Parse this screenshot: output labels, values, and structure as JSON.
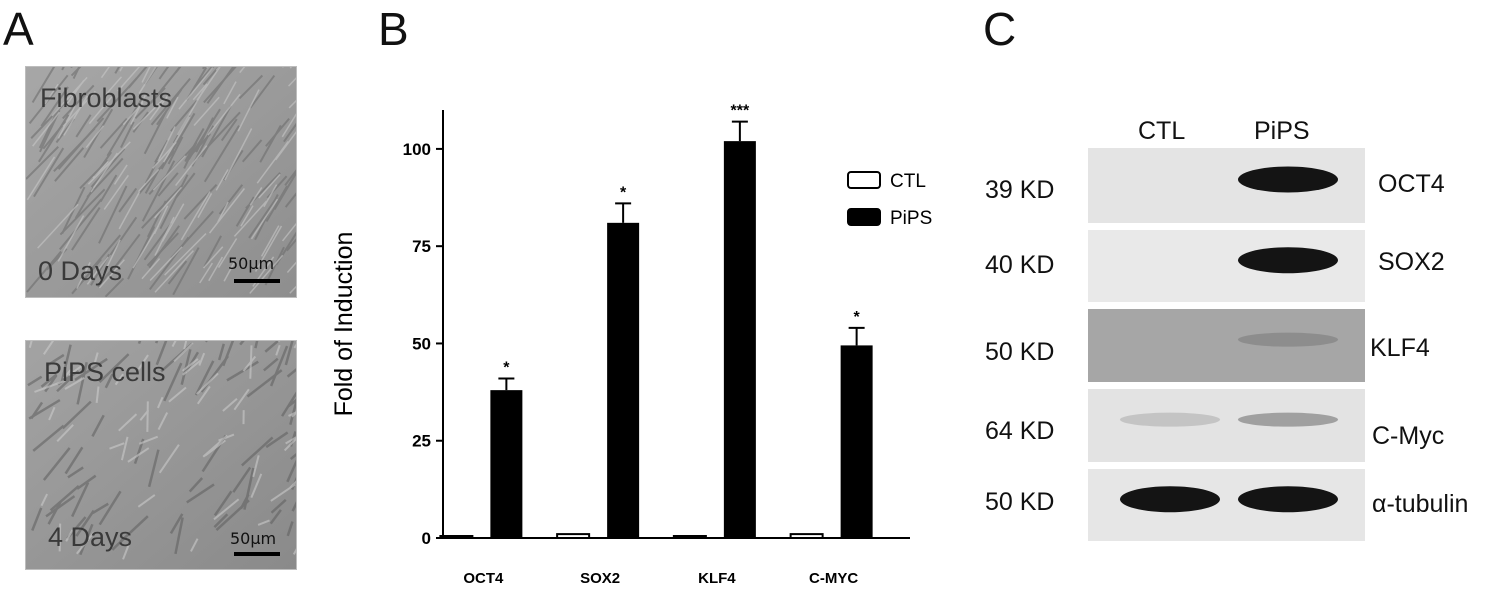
{
  "panels": {
    "a": {
      "letter": "A",
      "images": [
        {
          "label": "Fibroblasts",
          "day": "0 Days",
          "scale": "50μm"
        },
        {
          "label": "PiPS cells",
          "day": "4 Days",
          "scale": "50μm"
        }
      ]
    },
    "b": {
      "letter": "B"
    },
    "c": {
      "letter": "C",
      "columns": [
        "CTL",
        "PiPS"
      ],
      "rows": [
        {
          "kd": "39 KD",
          "protein": "OCT4"
        },
        {
          "kd": "40 KD",
          "protein": "SOX2"
        },
        {
          "kd": "50 KD",
          "protein": "KLF4"
        },
        {
          "kd": "64 KD",
          "protein": "C-Myc"
        },
        {
          "kd": "50 KD",
          "protein": "α-tubulin"
        }
      ],
      "band_intensity": {
        "CTL": [
          0.0,
          0.0,
          0.0,
          0.15,
          1.0
        ],
        "PiPS": [
          1.0,
          1.0,
          0.35,
          0.35,
          1.0
        ]
      }
    }
  },
  "chart_data": {
    "type": "bar",
    "categories": [
      "OCT4",
      "SOX2",
      "KLF4",
      "C-MYC"
    ],
    "series": [
      {
        "name": "CTL",
        "values": [
          0.5,
          1,
          0.5,
          1
        ],
        "errors": [
          0,
          0,
          0,
          0
        ],
        "color": "#ffffff"
      },
      {
        "name": "PiPS",
        "values": [
          38,
          81,
          102,
          49.5
        ],
        "errors": [
          3,
          5,
          5,
          4.5
        ],
        "color": "#000000"
      }
    ],
    "significance": [
      "*",
      "*",
      "***",
      "*"
    ],
    "title": "",
    "xlabel": "",
    "ylabel": "Fold of Induction",
    "ylim": [
      0,
      110
    ],
    "yticks": [
      0,
      25,
      50,
      75,
      100
    ],
    "legend_position": "top-right",
    "grid": false
  }
}
